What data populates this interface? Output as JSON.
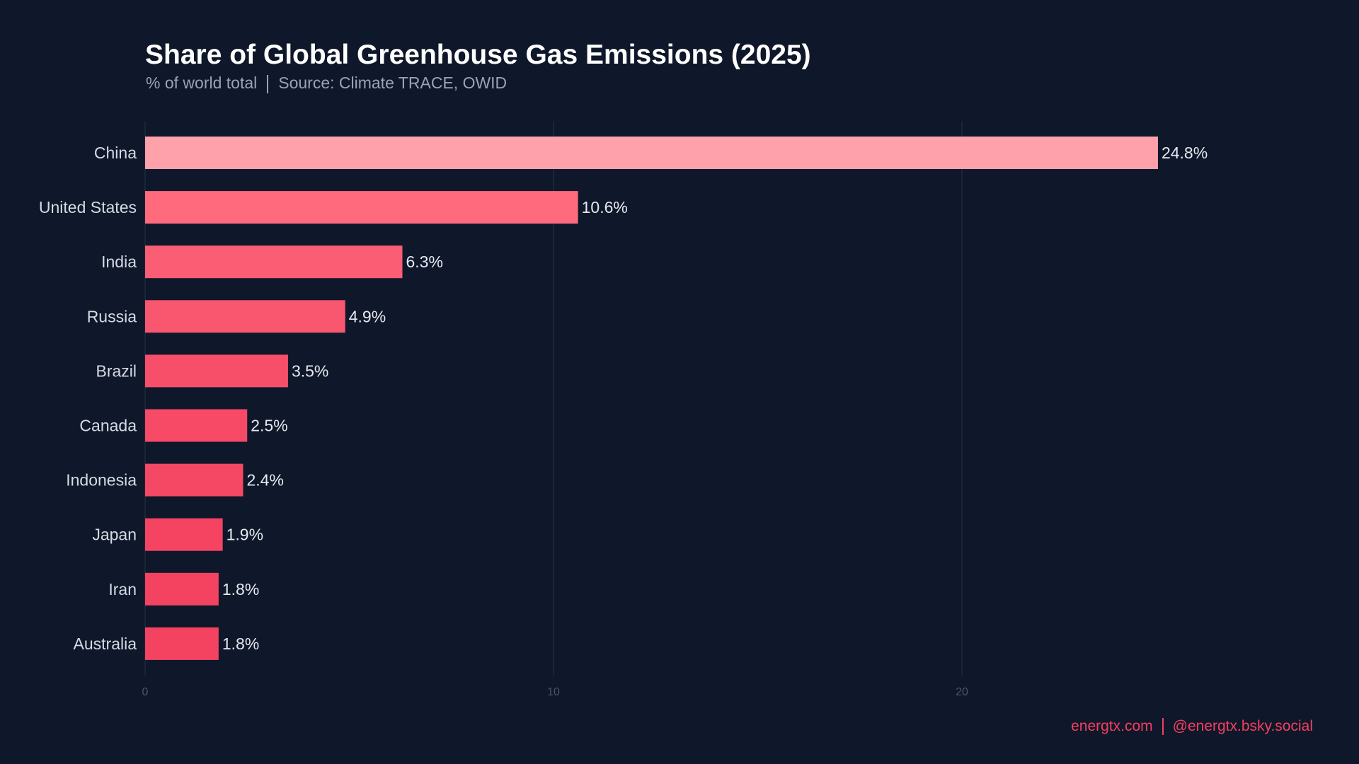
{
  "chart_data": {
    "type": "bar",
    "orientation": "horizontal",
    "title": "Share of Global Greenhouse Gas Emissions (2025)",
    "subtitle_parts": [
      "% of world total",
      "Source: Climate TRACE, OWID"
    ],
    "categories": [
      "China",
      "United States",
      "India",
      "Russia",
      "Brazil",
      "Canada",
      "Indonesia",
      "Japan",
      "Iran",
      "Australia"
    ],
    "values": [
      24.8,
      10.6,
      6.3,
      4.9,
      3.5,
      2.5,
      2.4,
      1.9,
      1.8,
      1.8
    ],
    "data_labels": [
      "24.8%",
      "10.6%",
      "6.3%",
      "4.9%",
      "3.5%",
      "2.5%",
      "2.4%",
      "1.9%",
      "1.8%",
      "1.8%"
    ],
    "bar_colors": [
      "#ffa1aa",
      "#ff6b7d",
      "#fb5d74",
      "#f9566f",
      "#f74e69",
      "#f64a66",
      "#f54864",
      "#f44462",
      "#f44361",
      "#f44361"
    ],
    "xticks": [
      "0",
      "10",
      "20"
    ],
    "xlim": [
      0,
      29.5
    ],
    "xlabel": "",
    "ylabel": "",
    "grid": "vertical",
    "legend": "none"
  },
  "footer": {
    "site": "energtx.com",
    "social": "@energtx.bsky.social"
  },
  "colors": {
    "background": "#0f172a",
    "accent": "#f43f5e",
    "grid": "#1f2a3d"
  }
}
